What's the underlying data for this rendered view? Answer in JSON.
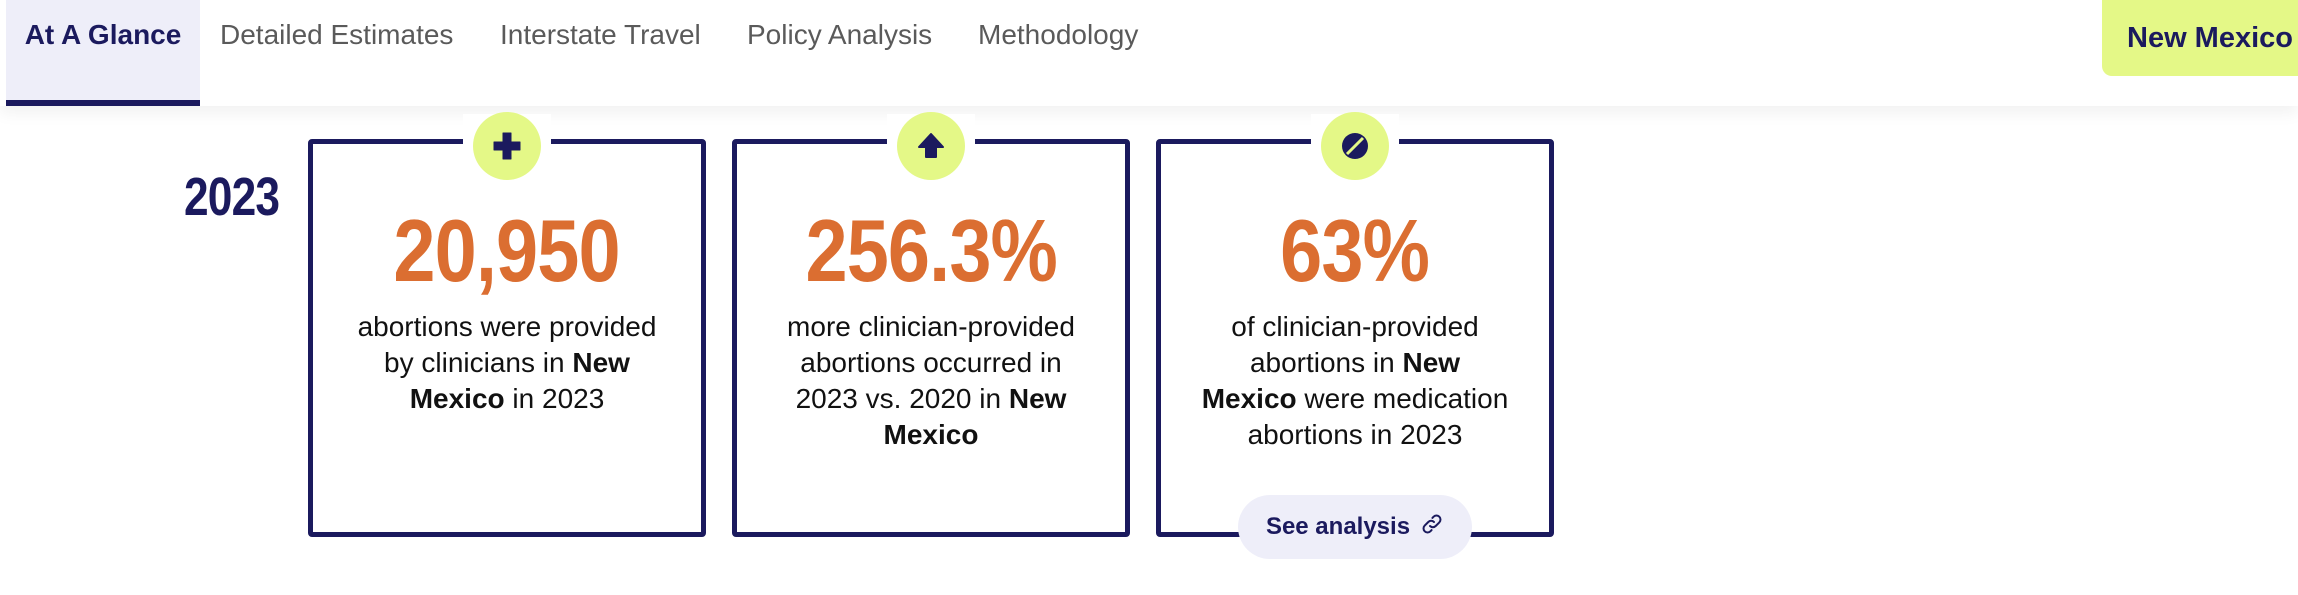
{
  "tabs": [
    {
      "label": "At A Glance",
      "active": true
    },
    {
      "label": "Detailed Estimates",
      "active": false
    },
    {
      "label": "Interstate Travel",
      "active": false
    },
    {
      "label": "Policy Analysis",
      "active": false
    },
    {
      "label": "Methodology",
      "active": false
    }
  ],
  "state_selector": {
    "label": "New Mexico"
  },
  "year": "2023",
  "colors": {
    "navy": "#1b1a5e",
    "orange": "#db6e31",
    "lime": "#e4f887",
    "tab_active_bg": "#eeeef9"
  },
  "cards": [
    {
      "icon": "plus-icon",
      "value": "20,950",
      "text_1": "abortions were provided by clinicians in ",
      "text_bold_1": "New Mexico",
      "text_2": " in 2023",
      "text_bold_2": "",
      "text_3": ""
    },
    {
      "icon": "arrow-up-icon",
      "value": "256.3%",
      "text_1": "more clinician-provided abortions occurred in 2023 vs. 2020 in ",
      "text_bold_1": "New Mexico",
      "text_2": "",
      "text_bold_2": "",
      "text_3": ""
    },
    {
      "icon": "pill-icon",
      "value": "63%",
      "text_1": "of clinician-provided abortions in ",
      "text_bold_1": "New Mexico",
      "text_2": " were medication abortions in 2023",
      "text_bold_2": "",
      "text_3": "",
      "link_label": "See analysis",
      "link_icon": "link-icon"
    }
  ]
}
